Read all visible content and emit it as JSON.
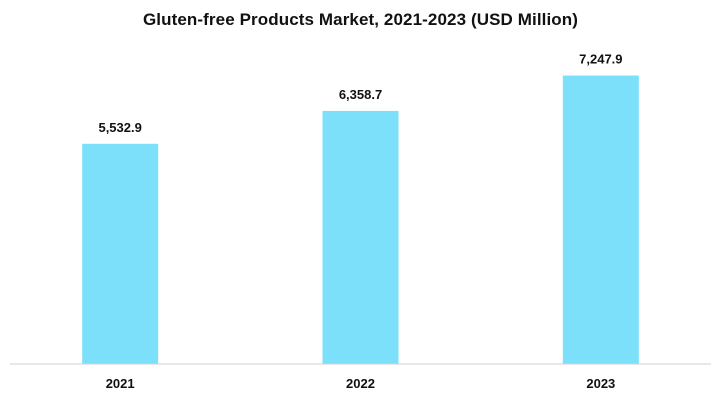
{
  "chart_data": {
    "type": "bar",
    "title": "Gluten-free Products Market, 2021-2023 (USD Million)",
    "categories": [
      "2021",
      "2022",
      "2023"
    ],
    "values": [
      5532.9,
      6358.7,
      7247.9
    ],
    "value_labels": [
      "5,532.9",
      "6,358.7",
      "7,247.9"
    ],
    "xlabel": "",
    "ylabel": "",
    "ylim": [
      0,
      8000
    ],
    "grid": false,
    "legend": "none",
    "bar_color": "#7de0fb",
    "axis_color": "#d0d0d0"
  }
}
